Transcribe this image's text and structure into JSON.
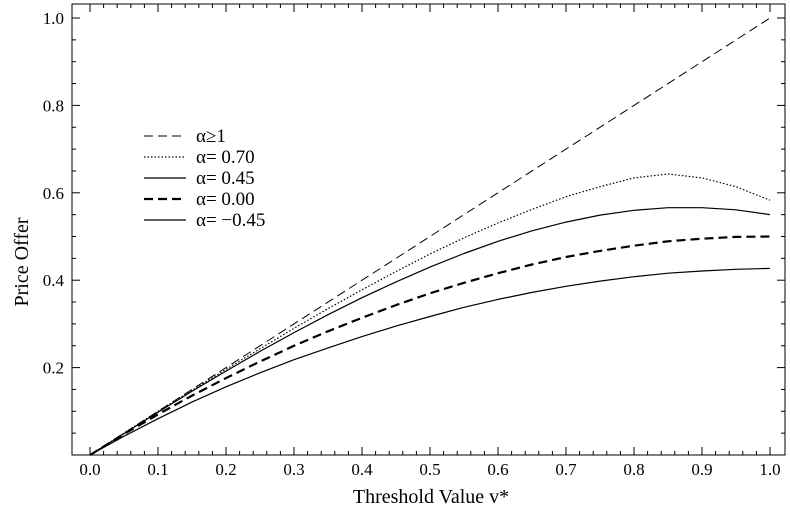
{
  "chart_data": {
    "type": "line",
    "xlabel": "Threshold Value v*",
    "ylabel": "Price Offer",
    "xlim": [
      0,
      1
    ],
    "ylim": [
      0,
      1
    ],
    "x_ticks": [
      "0.0",
      "0.1",
      "0.2",
      "0.3",
      "0.4",
      "0.5",
      "0.6",
      "0.7",
      "0.8",
      "0.9",
      "1.0"
    ],
    "y_ticks": [
      "0.2",
      "0.4",
      "0.6",
      "0.8",
      "1.0"
    ],
    "grid": false,
    "legend_position": "top-left",
    "x": [
      0,
      0.05,
      0.1,
      0.15,
      0.2,
      0.25,
      0.3,
      0.35,
      0.4,
      0.45,
      0.5,
      0.55,
      0.6,
      0.65,
      0.7,
      0.75,
      0.8,
      0.85,
      0.9,
      0.95,
      1.0
    ],
    "series": [
      {
        "name": "α≥1",
        "style": "dashed",
        "values": [
          0,
          0.05,
          0.1,
          0.15,
          0.2,
          0.25,
          0.3,
          0.35,
          0.4,
          0.45,
          0.5,
          0.55,
          0.6,
          0.65,
          0.7,
          0.75,
          0.8,
          0.85,
          0.9,
          0.95,
          1.0
        ]
      },
      {
        "name": "α= 0.70",
        "style": "dotted",
        "values": [
          0,
          0.05,
          0.1,
          0.148,
          0.196,
          0.243,
          0.29,
          0.335,
          0.378,
          0.42,
          0.46,
          0.497,
          0.531,
          0.562,
          0.591,
          0.614,
          0.634,
          0.643,
          0.634,
          0.614,
          0.583
        ]
      },
      {
        "name": "α= 0.45",
        "style": "solid",
        "values": [
          0,
          0.049,
          0.098,
          0.146,
          0.192,
          0.237,
          0.28,
          0.321,
          0.36,
          0.396,
          0.43,
          0.461,
          0.489,
          0.513,
          0.533,
          0.549,
          0.56,
          0.566,
          0.566,
          0.561,
          0.55
        ]
      },
      {
        "name": "α= 0.00",
        "style": "dashed-thick",
        "values": [
          0,
          0.048,
          0.093,
          0.136,
          0.176,
          0.214,
          0.25,
          0.283,
          0.314,
          0.343,
          0.37,
          0.394,
          0.416,
          0.436,
          0.453,
          0.467,
          0.479,
          0.489,
          0.495,
          0.499,
          0.5
        ]
      },
      {
        "name": "α= −0.45",
        "style": "solid",
        "values": [
          0,
          0.043,
          0.083,
          0.121,
          0.156,
          0.188,
          0.218,
          0.245,
          0.271,
          0.295,
          0.317,
          0.338,
          0.356,
          0.372,
          0.386,
          0.398,
          0.408,
          0.416,
          0.421,
          0.425,
          0.427
        ]
      }
    ]
  }
}
